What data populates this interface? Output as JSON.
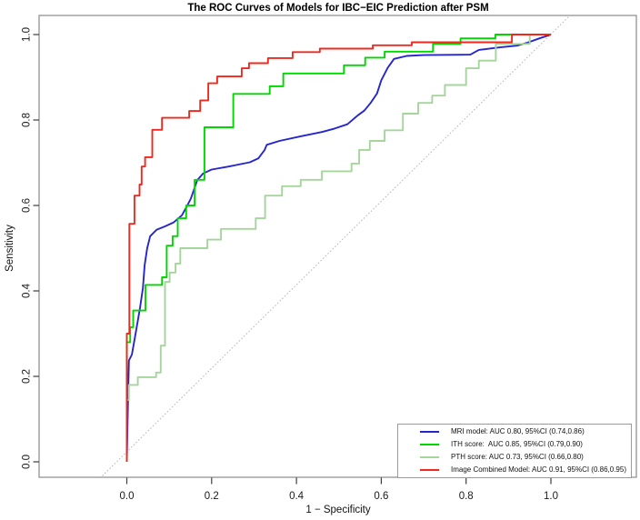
{
  "figure": {
    "background": "#ffffff"
  },
  "chart_data": {
    "type": "line",
    "subtype": "roc-curves",
    "title": "The ROC Curves of Models for IBC−EIC Prediction after PSM",
    "xlabel": "1 − Specificity",
    "ylabel": "Sensitivity",
    "xlim": [
      0,
      1
    ],
    "ylim": [
      0,
      1
    ],
    "grid": false,
    "diagonal_reference_line": true,
    "legend_position": "bottom-right",
    "xtick_labels": [
      "0.0",
      "0.2",
      "0.4",
      "0.6",
      "0.8",
      "1.0"
    ],
    "ytick_labels": [
      "0.0",
      "0.2",
      "0.4",
      "0.6",
      "0.8",
      "1.0"
    ],
    "colors": {
      "mri": "#2626cf",
      "ith": "#00d600",
      "pth": "#a4d69c",
      "combined": "#f1281e",
      "diagonal": "#b3b3b3",
      "box": "#8a8a8a",
      "tick": "#3d3d3d",
      "text": "#1a1a1a"
    },
    "series": [
      {
        "name": "MRI model",
        "slug": "mri-model",
        "label": "MRI model: AUC 0.80, 95%CI (0.74,0.86)",
        "auc": 0.8,
        "ci_low": 0.74,
        "ci_high": 0.86,
        "color": "#2626cf",
        "style": "smooth",
        "points": [
          [
            0,
            0
          ],
          [
            0.002,
            0.1
          ],
          [
            0.004,
            0.2
          ],
          [
            0.005,
            0.237
          ],
          [
            0.012,
            0.251
          ],
          [
            0.022,
            0.308
          ],
          [
            0.031,
            0.36
          ],
          [
            0.038,
            0.407
          ],
          [
            0.042,
            0.46
          ],
          [
            0.048,
            0.5
          ],
          [
            0.055,
            0.528
          ],
          [
            0.07,
            0.543
          ],
          [
            0.09,
            0.551
          ],
          [
            0.11,
            0.56
          ],
          [
            0.13,
            0.577
          ],
          [
            0.14,
            0.595
          ],
          [
            0.151,
            0.616
          ],
          [
            0.166,
            0.659
          ],
          [
            0.18,
            0.675
          ],
          [
            0.2,
            0.684
          ],
          [
            0.24,
            0.691
          ],
          [
            0.29,
            0.701
          ],
          [
            0.31,
            0.71
          ],
          [
            0.325,
            0.73
          ],
          [
            0.33,
            0.742
          ],
          [
            0.36,
            0.751
          ],
          [
            0.41,
            0.762
          ],
          [
            0.46,
            0.772
          ],
          [
            0.49,
            0.78
          ],
          [
            0.52,
            0.79
          ],
          [
            0.545,
            0.811
          ],
          [
            0.56,
            0.822
          ],
          [
            0.575,
            0.84
          ],
          [
            0.59,
            0.862
          ],
          [
            0.6,
            0.893
          ],
          [
            0.615,
            0.922
          ],
          [
            0.63,
            0.943
          ],
          [
            0.66,
            0.95
          ],
          [
            0.7,
            0.952
          ],
          [
            0.81,
            0.953
          ],
          [
            0.83,
            0.964
          ],
          [
            0.88,
            0.97
          ],
          [
            0.92,
            0.974
          ],
          [
            0.945,
            0.981
          ],
          [
            0.97,
            0.99
          ],
          [
            1,
            1
          ]
        ]
      },
      {
        "name": "ITH score",
        "slug": "ith-score",
        "label": "ITH score:  AUC 0.85, 95%CI (0.79,0.90)",
        "auc": 0.85,
        "ci_low": 0.79,
        "ci_high": 0.9,
        "color": "#00d600",
        "style": "step",
        "points": [
          [
            0,
            0
          ],
          [
            0,
            0.28
          ],
          [
            0.008,
            0.28
          ],
          [
            0.008,
            0.315
          ],
          [
            0.015,
            0.315
          ],
          [
            0.015,
            0.354
          ],
          [
            0.044,
            0.354
          ],
          [
            0.044,
            0.414
          ],
          [
            0.083,
            0.414
          ],
          [
            0.083,
            0.432
          ],
          [
            0.094,
            0.432
          ],
          [
            0.094,
            0.506
          ],
          [
            0.108,
            0.506
          ],
          [
            0.108,
            0.528
          ],
          [
            0.12,
            0.528
          ],
          [
            0.12,
            0.57
          ],
          [
            0.14,
            0.57
          ],
          [
            0.14,
            0.6
          ],
          [
            0.16,
            0.6
          ],
          [
            0.16,
            0.66
          ],
          [
            0.183,
            0.66
          ],
          [
            0.183,
            0.783
          ],
          [
            0.251,
            0.783
          ],
          [
            0.251,
            0.861
          ],
          [
            0.337,
            0.861
          ],
          [
            0.337,
            0.879
          ],
          [
            0.369,
            0.879
          ],
          [
            0.369,
            0.909
          ],
          [
            0.512,
            0.909
          ],
          [
            0.512,
            0.928
          ],
          [
            0.562,
            0.928
          ],
          [
            0.562,
            0.946
          ],
          [
            0.608,
            0.946
          ],
          [
            0.608,
            0.96
          ],
          [
            0.722,
            0.96
          ],
          [
            0.722,
            0.978
          ],
          [
            0.787,
            0.978
          ],
          [
            0.787,
            0.991
          ],
          [
            0.869,
            0.991
          ],
          [
            0.869,
            1
          ],
          [
            1,
            1
          ]
        ]
      },
      {
        "name": "PTH score",
        "slug": "pth-score",
        "label": "PTH score: AUC 0.73, 95%CI (0.66,0.80)",
        "auc": 0.73,
        "ci_low": 0.66,
        "ci_high": 0.8,
        "color": "#a4d69c",
        "style": "step",
        "points": [
          [
            0,
            0
          ],
          [
            0,
            0.145
          ],
          [
            0.005,
            0.145
          ],
          [
            0.005,
            0.18
          ],
          [
            0.026,
            0.18
          ],
          [
            0.026,
            0.198
          ],
          [
            0.069,
            0.198
          ],
          [
            0.069,
            0.209
          ],
          [
            0.08,
            0.209
          ],
          [
            0.08,
            0.272
          ],
          [
            0.09,
            0.272
          ],
          [
            0.09,
            0.421
          ],
          [
            0.101,
            0.421
          ],
          [
            0.101,
            0.443
          ],
          [
            0.115,
            0.443
          ],
          [
            0.115,
            0.464
          ],
          [
            0.126,
            0.464
          ],
          [
            0.126,
            0.5
          ],
          [
            0.19,
            0.5
          ],
          [
            0.19,
            0.52
          ],
          [
            0.222,
            0.52
          ],
          [
            0.222,
            0.545
          ],
          [
            0.304,
            0.545
          ],
          [
            0.304,
            0.57
          ],
          [
            0.326,
            0.57
          ],
          [
            0.326,
            0.623
          ],
          [
            0.366,
            0.623
          ],
          [
            0.366,
            0.645
          ],
          [
            0.41,
            0.645
          ],
          [
            0.41,
            0.66
          ],
          [
            0.46,
            0.66
          ],
          [
            0.46,
            0.68
          ],
          [
            0.53,
            0.68
          ],
          [
            0.53,
            0.698
          ],
          [
            0.548,
            0.698
          ],
          [
            0.548,
            0.73
          ],
          [
            0.573,
            0.73
          ],
          [
            0.573,
            0.751
          ],
          [
            0.608,
            0.751
          ],
          [
            0.608,
            0.776
          ],
          [
            0.651,
            0.776
          ],
          [
            0.651,
            0.815
          ],
          [
            0.687,
            0.815
          ],
          [
            0.687,
            0.84
          ],
          [
            0.72,
            0.84
          ],
          [
            0.72,
            0.857
          ],
          [
            0.75,
            0.857
          ],
          [
            0.75,
            0.882
          ],
          [
            0.8,
            0.882
          ],
          [
            0.8,
            0.921
          ],
          [
            0.83,
            0.921
          ],
          [
            0.83,
            0.939
          ],
          [
            0.87,
            0.939
          ],
          [
            0.87,
            0.978
          ],
          [
            0.95,
            0.978
          ],
          [
            0.95,
            1
          ],
          [
            1,
            1
          ]
        ]
      },
      {
        "name": "Image Combined Model",
        "slug": "image-combined-model",
        "label": "Image Combined Model: AUC 0.91, 95%CI (0.86,0.95)",
        "auc": 0.91,
        "ci_low": 0.86,
        "ci_high": 0.95,
        "color": "#f1281e",
        "style": "step",
        "points": [
          [
            0,
            0
          ],
          [
            0,
            0.3
          ],
          [
            0.006,
            0.3
          ],
          [
            0.006,
            0.557
          ],
          [
            0.018,
            0.557
          ],
          [
            0.018,
            0.623
          ],
          [
            0.03,
            0.623
          ],
          [
            0.03,
            0.649
          ],
          [
            0.035,
            0.649
          ],
          [
            0.035,
            0.691
          ],
          [
            0.043,
            0.691
          ],
          [
            0.043,
            0.713
          ],
          [
            0.06,
            0.713
          ],
          [
            0.06,
            0.777
          ],
          [
            0.083,
            0.777
          ],
          [
            0.083,
            0.805
          ],
          [
            0.147,
            0.805
          ],
          [
            0.147,
            0.821
          ],
          [
            0.173,
            0.821
          ],
          [
            0.173,
            0.846
          ],
          [
            0.192,
            0.846
          ],
          [
            0.192,
            0.886
          ],
          [
            0.213,
            0.886
          ],
          [
            0.213,
            0.902
          ],
          [
            0.271,
            0.902
          ],
          [
            0.271,
            0.921
          ],
          [
            0.288,
            0.921
          ],
          [
            0.288,
            0.933
          ],
          [
            0.333,
            0.933
          ],
          [
            0.333,
            0.945
          ],
          [
            0.391,
            0.945
          ],
          [
            0.391,
            0.959
          ],
          [
            0.455,
            0.959
          ],
          [
            0.455,
            0.967
          ],
          [
            0.58,
            0.967
          ],
          [
            0.58,
            0.975
          ],
          [
            0.672,
            0.975
          ],
          [
            0.672,
            0.982
          ],
          [
            0.908,
            0.982
          ],
          [
            0.908,
            1
          ],
          [
            1,
            1
          ]
        ]
      }
    ]
  }
}
